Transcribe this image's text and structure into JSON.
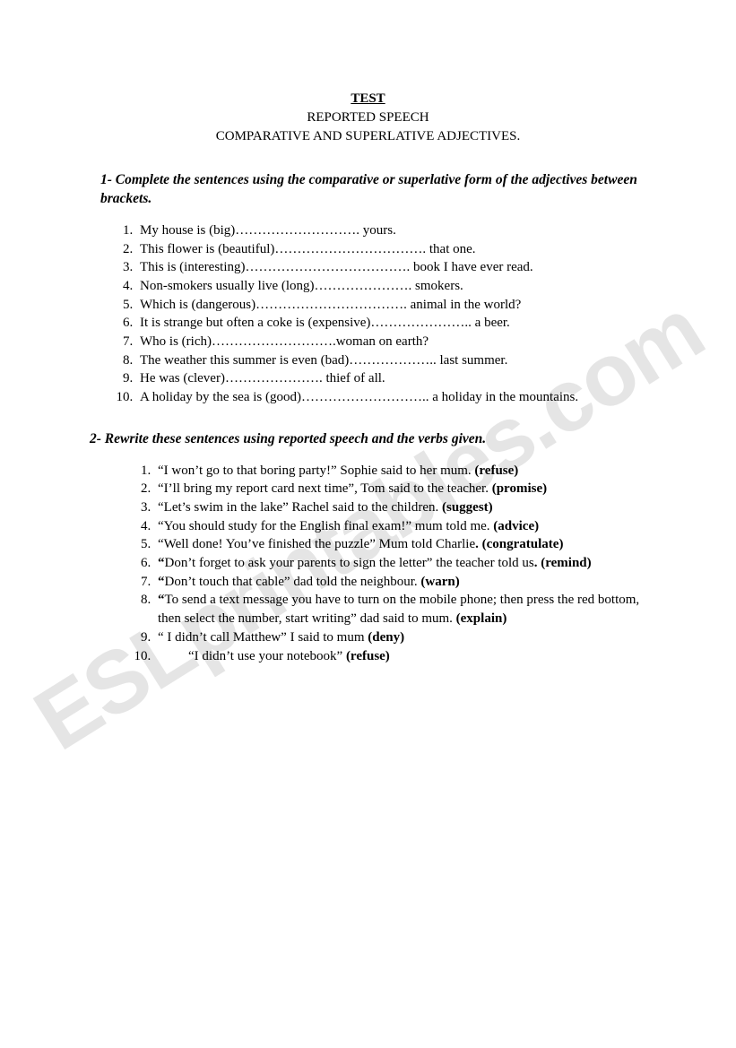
{
  "title": {
    "line1": "TEST",
    "line2": "REPORTED SPEECH",
    "line3": "COMPARATIVE AND SUPERLATIVE ADJECTIVES."
  },
  "section1": {
    "instruction": "1- Complete the sentences using the comparative or superlative form of the adjectives between brackets.",
    "items": [
      "My house is (big)………………………. yours.",
      "This flower is (beautiful)…………………………….   that one.",
      "This is (interesting)………………………………. book I have ever read.",
      "Non-smokers usually live (long)…………………. smokers.",
      "Which is  (dangerous)…………………………….  animal in the world?",
      "It is strange but often a coke is (expensive)………………….. a beer.",
      "Who is (rich)……………………….woman on earth?",
      "The weather this summer is even (bad)……………….. last summer.",
      "He was (clever)…………………. thief of all.",
      " A holiday by the sea is (good)……………………….. a holiday in the mountains."
    ]
  },
  "section2": {
    "instruction": "2- Rewrite these sentences using reported speech and the verbs given.",
    "items": [
      {
        "text": "“I won’t go to that boring party!” Sophie said to her mum. ",
        "verb": "(refuse)"
      },
      {
        "text": "“I’ll bring my report card next time”, Tom said to the teacher. ",
        "verb": "(promise)"
      },
      {
        "text": "“Let’s swim in the lake” Rachel said to the children. ",
        "verb": "(suggest)"
      },
      {
        "text": "“You should study for the English final exam!” mum told me. ",
        "verb": "(advice)"
      },
      {
        "text": "“Well done! You’ve finished the puzzle” Mum told Charlie",
        "verb": ". (congratulate)"
      },
      {
        "text": "“Don’t forget to ask your parents to sign the letter” the teacher told us",
        "verb": ". (remind)"
      },
      {
        "text": "“Don’t touch that cable” dad told the neighbour. ",
        "verb": "(warn)"
      },
      {
        "text": "“To send a text message you have to turn on the mobile phone; then press the red bottom, then select the number, start writing” dad said to mum. ",
        "verb": "(explain)"
      },
      {
        "text": "“ I didn’t call Matthew” I said to mum ",
        "verb": "(deny)"
      },
      {
        "text": "“I didn’t use your notebook” ",
        "verb": "(refuse)",
        "indent": true
      }
    ]
  },
  "watermark": "ESLprintables.com",
  "colors": {
    "text": "#000000",
    "background": "#ffffff",
    "watermark": "rgba(0,0,0,0.10)"
  },
  "typography": {
    "body_font": "Century Schoolbook",
    "body_size_pt": 11,
    "instruction_italic_bold": true
  }
}
